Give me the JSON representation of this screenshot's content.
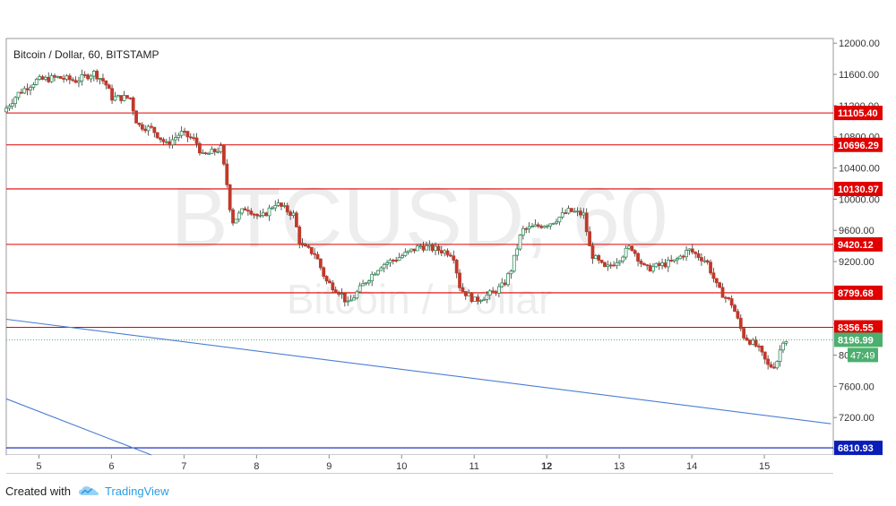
{
  "chart_data": {
    "type": "candlestick",
    "title": "Bitcoin / Dollar, 60, BITSTAMP",
    "watermark": {
      "symbol": "BTCUSD, 60",
      "name": "Bitcoin / Dollar"
    },
    "x_ticks": [
      "5",
      "6",
      "7",
      "8",
      "9",
      "10",
      "11",
      "12",
      "13",
      "14",
      "15"
    ],
    "x_range": [
      4.55,
      15.95
    ],
    "y_ticks": [
      "12000.00",
      "11600.00",
      "11200.00",
      "10800.00",
      "10400.00",
      "10000.00",
      "9600.00",
      "9200.00",
      "8800.00",
      "8400.00",
      "8000.00",
      "7600.00",
      "7200.00",
      "6800.00"
    ],
    "y_range": [
      6720,
      12060
    ],
    "horizontal_levels": [
      {
        "value": 11105.4,
        "label": "11105.40",
        "color": "#e00000"
      },
      {
        "value": 10696.29,
        "label": "10696.29",
        "color": "#e00000"
      },
      {
        "value": 10130.97,
        "label": "10130.97",
        "color": "#e00000"
      },
      {
        "value": 9420.12,
        "label": "9420.12",
        "color": "#e00000"
      },
      {
        "value": 8799.68,
        "label": "8799.68",
        "color": "#e00000"
      },
      {
        "value": 8356.55,
        "label": "8356.55",
        "color": "#e00000"
      },
      {
        "value": 6810.93,
        "label": "6810.93",
        "color": "#0a1db8"
      }
    ],
    "trendlines": [
      {
        "from": [
          4.55,
          8460
        ],
        "to": [
          15.92,
          7120
        ],
        "color": "#4a7fd1"
      },
      {
        "from": [
          4.55,
          7440
        ],
        "to": [
          6.55,
          6720
        ],
        "color": "#4a7fd1"
      }
    ],
    "current_price": {
      "value": 8196.99,
      "label": "8196.99",
      "countdown": "47:49",
      "color": "#4caf6e"
    },
    "candle_color_up": "#2e8b57",
    "candle_color_down": "#c0392b",
    "series_keypoints": [
      [
        4.55,
        11120
      ],
      [
        4.75,
        11350
      ],
      [
        5.0,
        11520
      ],
      [
        5.3,
        11560
      ],
      [
        5.55,
        11520
      ],
      [
        5.8,
        11620
      ],
      [
        5.95,
        11500
      ],
      [
        6.05,
        11300
      ],
      [
        6.3,
        11300
      ],
      [
        6.4,
        10950
      ],
      [
        6.6,
        10900
      ],
      [
        6.8,
        10700
      ],
      [
        7.0,
        10850
      ],
      [
        7.2,
        10750
      ],
      [
        7.3,
        10550
      ],
      [
        7.55,
        10650
      ],
      [
        7.65,
        10100
      ],
      [
        7.7,
        9700
      ],
      [
        7.9,
        9900
      ],
      [
        8.1,
        9750
      ],
      [
        8.3,
        9950
      ],
      [
        8.55,
        9800
      ],
      [
        8.65,
        9400
      ],
      [
        8.85,
        9300
      ],
      [
        9.0,
        8950
      ],
      [
        9.2,
        8800
      ],
      [
        9.3,
        8650
      ],
      [
        9.55,
        8950
      ],
      [
        9.75,
        9150
      ],
      [
        10.0,
        9250
      ],
      [
        10.3,
        9400
      ],
      [
        10.55,
        9350
      ],
      [
        10.75,
        9300
      ],
      [
        10.85,
        8850
      ],
      [
        11.05,
        8700
      ],
      [
        11.3,
        8800
      ],
      [
        11.45,
        8900
      ],
      [
        11.55,
        9100
      ],
      [
        11.7,
        9600
      ],
      [
        11.9,
        9650
      ],
      [
        12.1,
        9700
      ],
      [
        12.35,
        9850
      ],
      [
        12.55,
        9800
      ],
      [
        12.65,
        9300
      ],
      [
        12.85,
        9100
      ],
      [
        13.05,
        9250
      ],
      [
        13.2,
        9400
      ],
      [
        13.4,
        9100
      ],
      [
        13.6,
        9150
      ],
      [
        13.8,
        9200
      ],
      [
        14.0,
        9350
      ],
      [
        14.25,
        9200
      ],
      [
        14.4,
        8850
      ],
      [
        14.6,
        8650
      ],
      [
        14.75,
        8250
      ],
      [
        14.95,
        8100
      ],
      [
        15.1,
        7850
      ],
      [
        15.2,
        7880
      ],
      [
        15.3,
        8196.99
      ]
    ]
  },
  "footer": {
    "created_with": "Created with",
    "brand": "TradingView",
    "logo_icon": "tradingview-cloud-icon"
  }
}
